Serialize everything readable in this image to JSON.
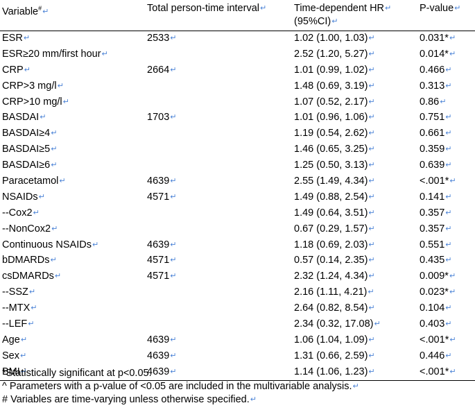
{
  "header": {
    "variable": "Variable",
    "variable_sup": "#",
    "person_time": "Total person-time interval",
    "hr_line1": "Time-dependent HR",
    "hr_line2": "(95%CI)",
    "pvalue": "P-value"
  },
  "rows": [
    {
      "variable": "ESR",
      "person_time": "2533",
      "hr": "1.02 (1.00, 1.03)",
      "p": "0.031*"
    },
    {
      "variable": "ESR≥20 mm/first hour",
      "person_time": "",
      "hr": "2.52 (1.20, 5.27)",
      "p": "0.014*"
    },
    {
      "variable": "CRP",
      "person_time": "2664",
      "hr": "1.01 (0.99, 1.02)",
      "p": "0.466"
    },
    {
      "variable": "CRP>3 mg/l",
      "person_time": "",
      "hr": "1.48 (0.69, 3.19)",
      "p": "0.313"
    },
    {
      "variable": "CRP>10 mg/l",
      "person_time": "",
      "hr": "1.07 (0.52, 2.17)",
      "p": "0.86"
    },
    {
      "variable": "BASDAI",
      "person_time": "1703",
      "hr": "1.01 (0.96, 1.06)",
      "p": "0.751"
    },
    {
      "variable": "BASDAI≥4",
      "person_time": "",
      "hr": "1.19 (0.54, 2.62)",
      "p": "0.661"
    },
    {
      "variable": "BASDAI≥5",
      "person_time": "",
      "hr": "1.46 (0.65, 3.25)",
      "p": "0.359"
    },
    {
      "variable": "BASDAI≥6",
      "person_time": "",
      "hr": "1.25 (0.50, 3.13)",
      "p": "0.639"
    },
    {
      "variable": "Paracetamol",
      "person_time": "4639",
      "hr": "2.55 (1.49, 4.34)",
      "p": "<.001*"
    },
    {
      "variable": "NSAIDs",
      "person_time": "4571",
      "hr": "1.49 (0.88, 2.54)",
      "p": "0.141"
    },
    {
      "variable": "--Cox2",
      "person_time": "",
      "hr": "1.49 (0.64, 3.51)",
      "p": "0.357"
    },
    {
      "variable": "--NonCox2",
      "person_time": "",
      "hr": "0.67 (0.29, 1.57)",
      "p": "0.357"
    },
    {
      "variable": "Continuous NSAIDs",
      "person_time": "4639",
      "hr": "1.18 (0.69, 2.03)",
      "p": "0.551"
    },
    {
      "variable": "bDMARDs",
      "person_time": "4571",
      "hr": "0.57 (0.14, 2.35)",
      "p": "0.435"
    },
    {
      "variable": "csDMARDs",
      "person_time": "4571",
      "hr": "2.32 (1.24, 4.34)",
      "p": "0.009*"
    },
    {
      "variable": "--SSZ",
      "person_time": "",
      "hr": "2.16 (1.11, 4.21)",
      "p": "0.023*"
    },
    {
      "variable": "--MTX",
      "person_time": "",
      "hr": "2.64 (0.82, 8.54)",
      "p": "0.104"
    },
    {
      "variable": "--LEF",
      "person_time": "",
      "hr": "2.34 (0.32, 17.08)",
      "p": "0.403"
    },
    {
      "variable": "Age",
      "person_time": "4639",
      "hr": "1.06 (1.04, 1.09)",
      "p": "<.001*"
    },
    {
      "variable": "Sex",
      "person_time": "4639",
      "hr": "1.31 (0.66, 2.59)",
      "p": "0.446"
    },
    {
      "variable": "BMI",
      "person_time": "4639",
      "hr": "1.14 (1.06, 1.23)",
      "p": "<.001*"
    }
  ],
  "footnotes": [
    "*Statistically significant at p<0.05.",
    "^ Parameters with a p-value of <0.05 are included in the multivariable analysis.",
    "# Variables are time-varying unless otherwise specified."
  ],
  "colors": {
    "return_mark": "#4a82d6",
    "text": "#000000",
    "rule": "#000000"
  }
}
